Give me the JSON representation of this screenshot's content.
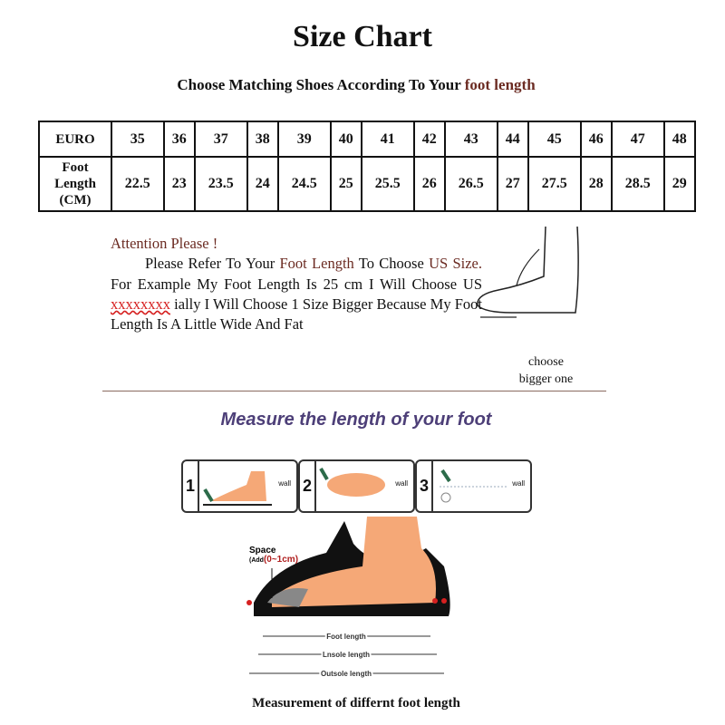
{
  "title": "Size Chart",
  "subtitle": {
    "prefix": "Choose Matching Shoes According To Your ",
    "highlight": "foot length"
  },
  "table": {
    "row1_label": "EURO",
    "row2_label": [
      "Foot",
      "Length",
      "(CM)"
    ],
    "euro": [
      "35",
      "36",
      "37",
      "38",
      "39",
      "40",
      "41",
      "42",
      "43",
      "44",
      "45",
      "46",
      "47",
      "48"
    ],
    "foot_length_cm": [
      "22.5",
      "23",
      "23.5",
      "24",
      "24.5",
      "25",
      "25.5",
      "26",
      "26.5",
      "27",
      "27.5",
      "28",
      "28.5",
      "29"
    ]
  },
  "note": {
    "heading": "Attention Please !",
    "p1": "Please Refer To Your ",
    "p1_hl": "Foot Length",
    "p2": " To Choose ",
    "p2_hl": "US Size.",
    "p3": " For Example My Foot Length Is 25 cm I Will Choose US ",
    "p3_x": "xxxxxxxx",
    "p4": " ially I Will Choose 1 Size Bigger Because My Foot Length Is A Little Wide And Fat"
  },
  "choose_bigger": [
    "choose",
    "bigger one"
  ],
  "measure_title": "Measure the length of your foot",
  "steps": [
    {
      "num": "1",
      "wall": "wall"
    },
    {
      "num": "2",
      "wall": "wall"
    },
    {
      "num": "3",
      "wall": "wall"
    }
  ],
  "diagram": {
    "space": "Space",
    "space_add": "(Add",
    "space_range": "(0~1cm)",
    "foot_length": "Foot length",
    "insole_length": "Lnsole length",
    "outsole_length": "Outsole length"
  },
  "caption": "Measurement of differnt foot length",
  "colors": {
    "accent_brown": "#6b2b22",
    "measure_purple": "#4d3f78",
    "skin": "#f5a877",
    "red": "#d62020"
  }
}
